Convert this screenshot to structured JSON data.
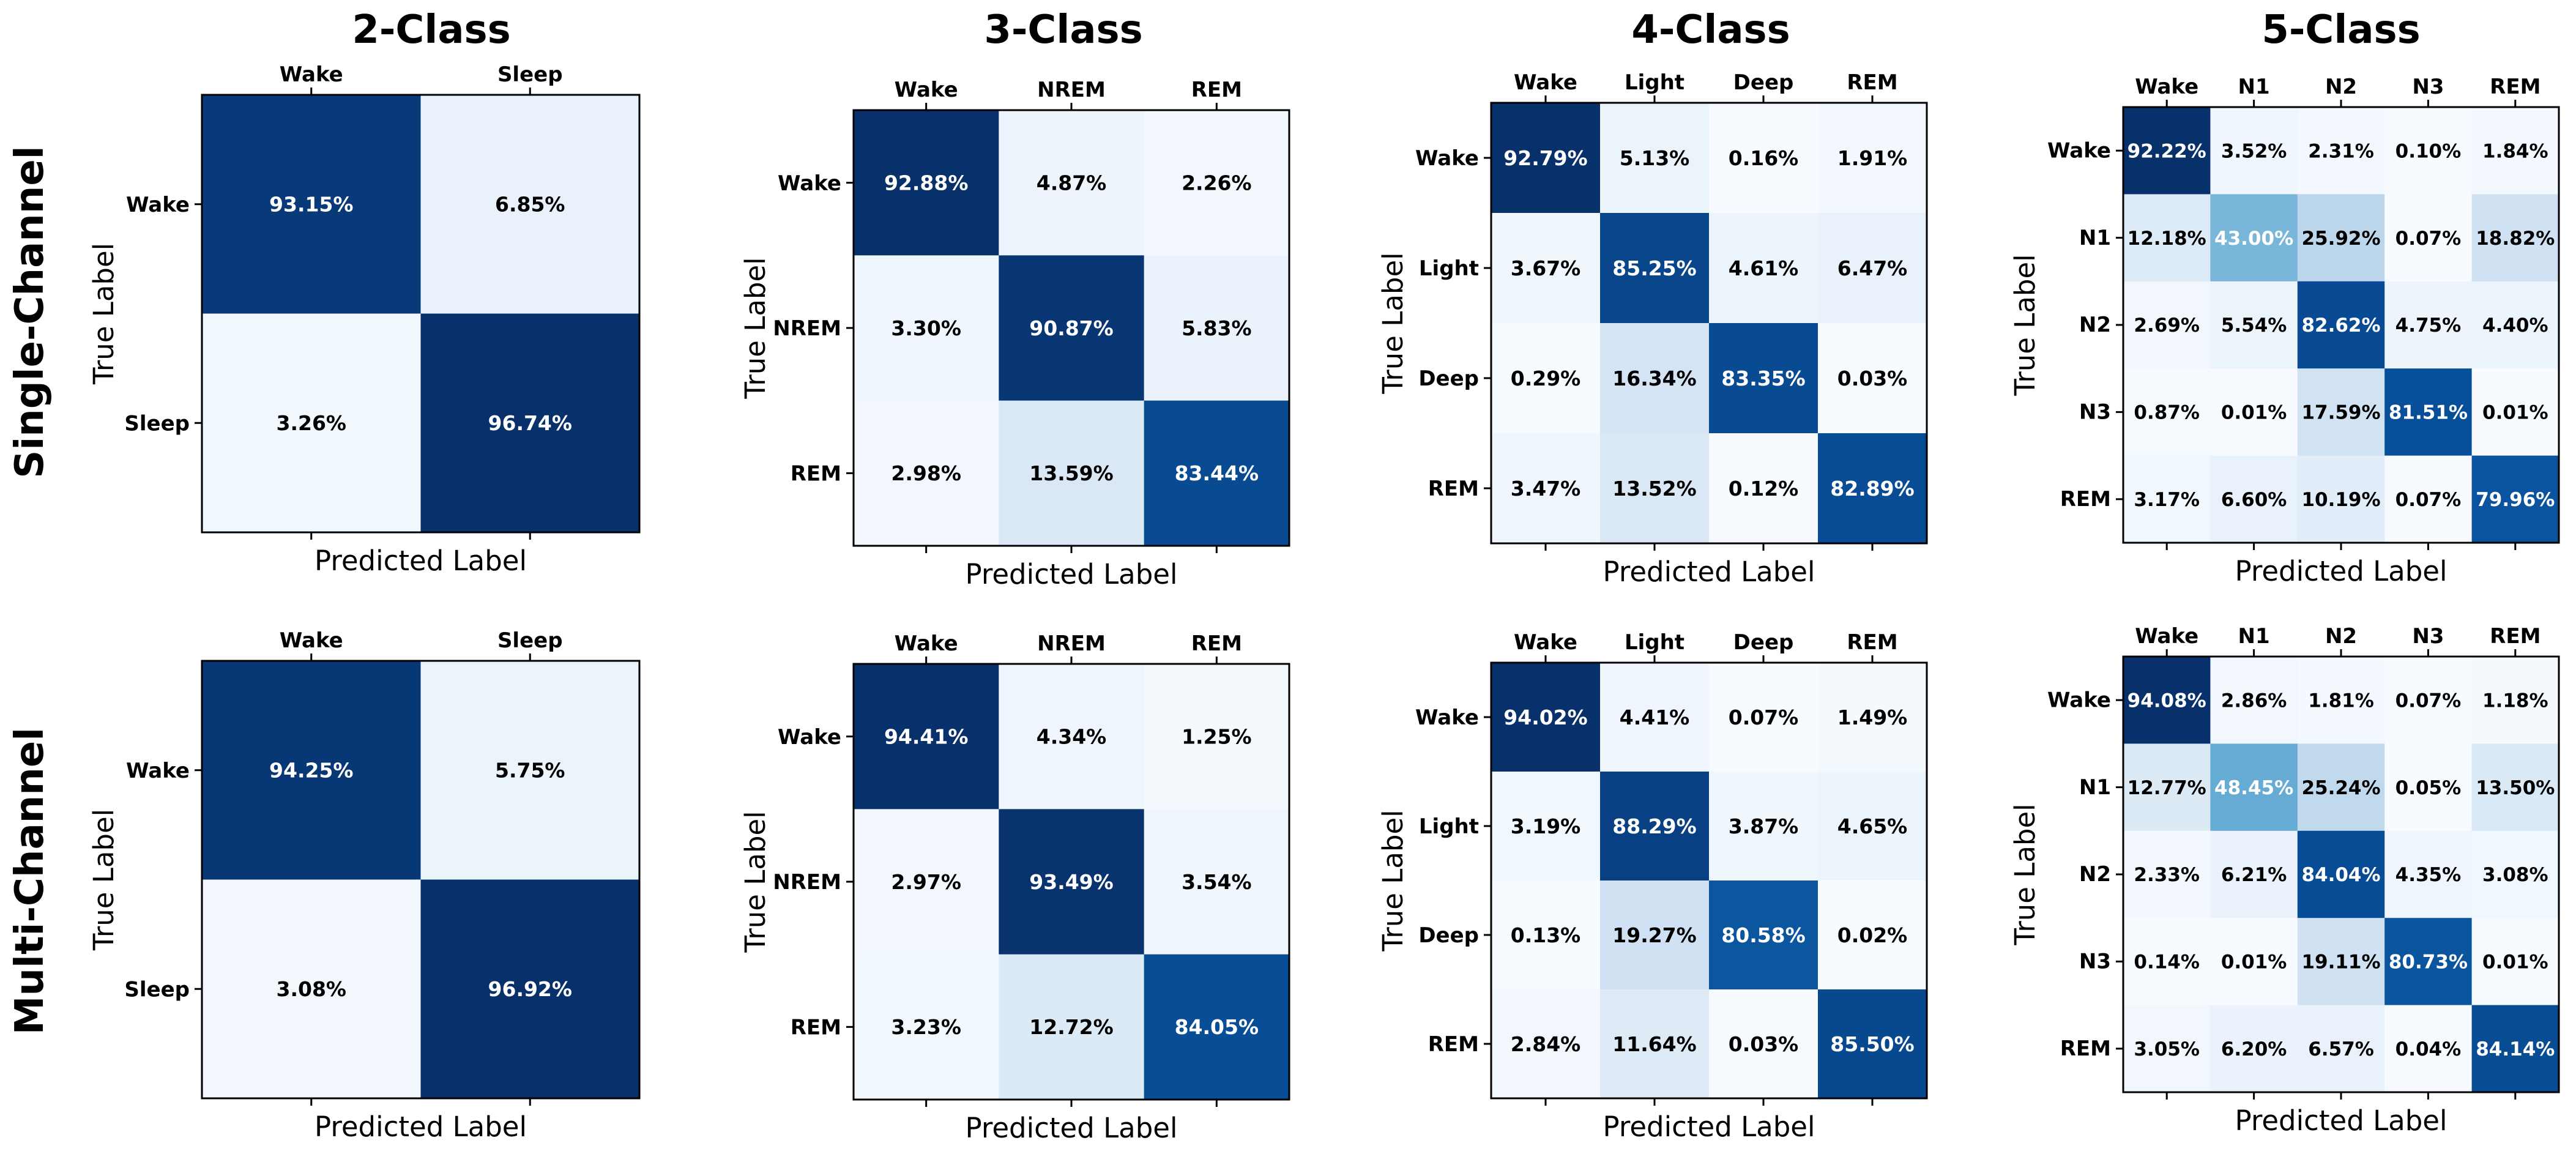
{
  "chart_data": {
    "type": "heatmap",
    "colormap": "Blues",
    "column_titles": [
      "2-Class",
      "3-Class",
      "4-Class",
      "5-Class"
    ],
    "row_titles": [
      "Single-Channel",
      "Multi-Channel"
    ],
    "xlabel": "Predicted Label",
    "ylabel": "True Label",
    "panels": [
      {
        "id": "single-2class",
        "labels": [
          "Wake",
          "Sleep"
        ],
        "values": [
          [
            93.15,
            6.85
          ],
          [
            3.26,
            96.74
          ]
        ],
        "text": [
          [
            "93.15%",
            "6.85%"
          ],
          [
            "3.26%",
            "96.74%"
          ]
        ]
      },
      {
        "id": "single-3class",
        "labels": [
          "Wake",
          "NREM",
          "REM"
        ],
        "values": [
          [
            92.88,
            4.87,
            2.26
          ],
          [
            3.3,
            90.87,
            5.83
          ],
          [
            2.98,
            13.59,
            83.44
          ]
        ],
        "text": [
          [
            "92.88%",
            "4.87%",
            "2.26%"
          ],
          [
            "3.30%",
            "90.87%",
            "5.83%"
          ],
          [
            "2.98%",
            "13.59%",
            "83.44%"
          ]
        ]
      },
      {
        "id": "single-4class",
        "labels": [
          "Wake",
          "Light",
          "Deep",
          "REM"
        ],
        "values": [
          [
            92.79,
            5.13,
            0.16,
            1.91
          ],
          [
            3.67,
            85.25,
            4.61,
            6.47
          ],
          [
            0.29,
            16.34,
            83.35,
            0.03
          ],
          [
            3.47,
            13.52,
            0.12,
            82.89
          ]
        ],
        "text": [
          [
            "92.79%",
            "5.13%",
            "0.16%",
            "1.91%"
          ],
          [
            "3.67%",
            "85.25%",
            "4.61%",
            "6.47%"
          ],
          [
            "0.29%",
            "16.34%",
            "83.35%",
            "0.03%"
          ],
          [
            "3.47%",
            "13.52%",
            "0.12%",
            "82.89%"
          ]
        ]
      },
      {
        "id": "single-5class",
        "labels": [
          "Wake",
          "N1",
          "N2",
          "N3",
          "REM"
        ],
        "values": [
          [
            92.22,
            3.52,
            2.31,
            0.1,
            1.84
          ],
          [
            12.18,
            43.0,
            25.92,
            0.07,
            18.82
          ],
          [
            2.69,
            5.54,
            82.62,
            4.75,
            4.4
          ],
          [
            0.87,
            0.01,
            17.59,
            81.51,
            0.01
          ],
          [
            3.17,
            6.6,
            10.19,
            0.07,
            79.96
          ]
        ],
        "text": [
          [
            "92.22%",
            "3.52%",
            "2.31%",
            "0.10%",
            "1.84%"
          ],
          [
            "12.18%",
            "43.00%",
            "25.92%",
            "0.07%",
            "18.82%"
          ],
          [
            "2.69%",
            "5.54%",
            "82.62%",
            "4.75%",
            "4.40%"
          ],
          [
            "0.87%",
            "0.01%",
            "17.59%",
            "81.51%",
            "0.01%"
          ],
          [
            "3.17%",
            "6.60%",
            "10.19%",
            "0.07%",
            "79.96%"
          ]
        ]
      },
      {
        "id": "multi-2class",
        "labels": [
          "Wake",
          "Sleep"
        ],
        "values": [
          [
            94.25,
            5.75
          ],
          [
            3.08,
            96.92
          ]
        ],
        "text": [
          [
            "94.25%",
            "5.75%"
          ],
          [
            "3.08%",
            "96.92%"
          ]
        ]
      },
      {
        "id": "multi-3class",
        "labels": [
          "Wake",
          "NREM",
          "REM"
        ],
        "values": [
          [
            94.41,
            4.34,
            1.25
          ],
          [
            2.97,
            93.49,
            3.54
          ],
          [
            3.23,
            12.72,
            84.05
          ]
        ],
        "text": [
          [
            "94.41%",
            "4.34%",
            "1.25%"
          ],
          [
            "2.97%",
            "93.49%",
            "3.54%"
          ],
          [
            "3.23%",
            "12.72%",
            "84.05%"
          ]
        ]
      },
      {
        "id": "multi-4class",
        "labels": [
          "Wake",
          "Light",
          "Deep",
          "REM"
        ],
        "values": [
          [
            94.02,
            4.41,
            0.07,
            1.49
          ],
          [
            3.19,
            88.29,
            3.87,
            4.65
          ],
          [
            0.13,
            19.27,
            80.58,
            0.02
          ],
          [
            2.84,
            11.64,
            0.03,
            85.5
          ]
        ],
        "text": [
          [
            "94.02%",
            "4.41%",
            "0.07%",
            "1.49%"
          ],
          [
            "3.19%",
            "88.29%",
            "3.87%",
            "4.65%"
          ],
          [
            "0.13%",
            "19.27%",
            "80.58%",
            "0.02%"
          ],
          [
            "2.84%",
            "11.64%",
            "0.03%",
            "85.50%"
          ]
        ]
      },
      {
        "id": "multi-5class",
        "labels": [
          "Wake",
          "N1",
          "N2",
          "N3",
          "REM"
        ],
        "values": [
          [
            94.08,
            2.86,
            1.81,
            0.07,
            1.18
          ],
          [
            12.77,
            48.45,
            25.24,
            0.05,
            13.5
          ],
          [
            2.33,
            6.21,
            84.04,
            4.35,
            3.08
          ],
          [
            0.14,
            0.01,
            19.11,
            80.73,
            0.01
          ],
          [
            3.05,
            6.2,
            6.57,
            0.04,
            84.14
          ]
        ],
        "text": [
          [
            "94.08%",
            "2.86%",
            "1.81%",
            "0.07%",
            "1.18%"
          ],
          [
            "12.77%",
            "48.45%",
            "25.24%",
            "0.05%",
            "13.50%"
          ],
          [
            "2.33%",
            "6.21%",
            "84.04%",
            "4.35%",
            "3.08%"
          ],
          [
            "0.14%",
            "0.01%",
            "19.11%",
            "80.73%",
            "0.01%"
          ],
          [
            "3.05%",
            "6.20%",
            "6.57%",
            "0.04%",
            "84.14%"
          ]
        ]
      }
    ]
  }
}
